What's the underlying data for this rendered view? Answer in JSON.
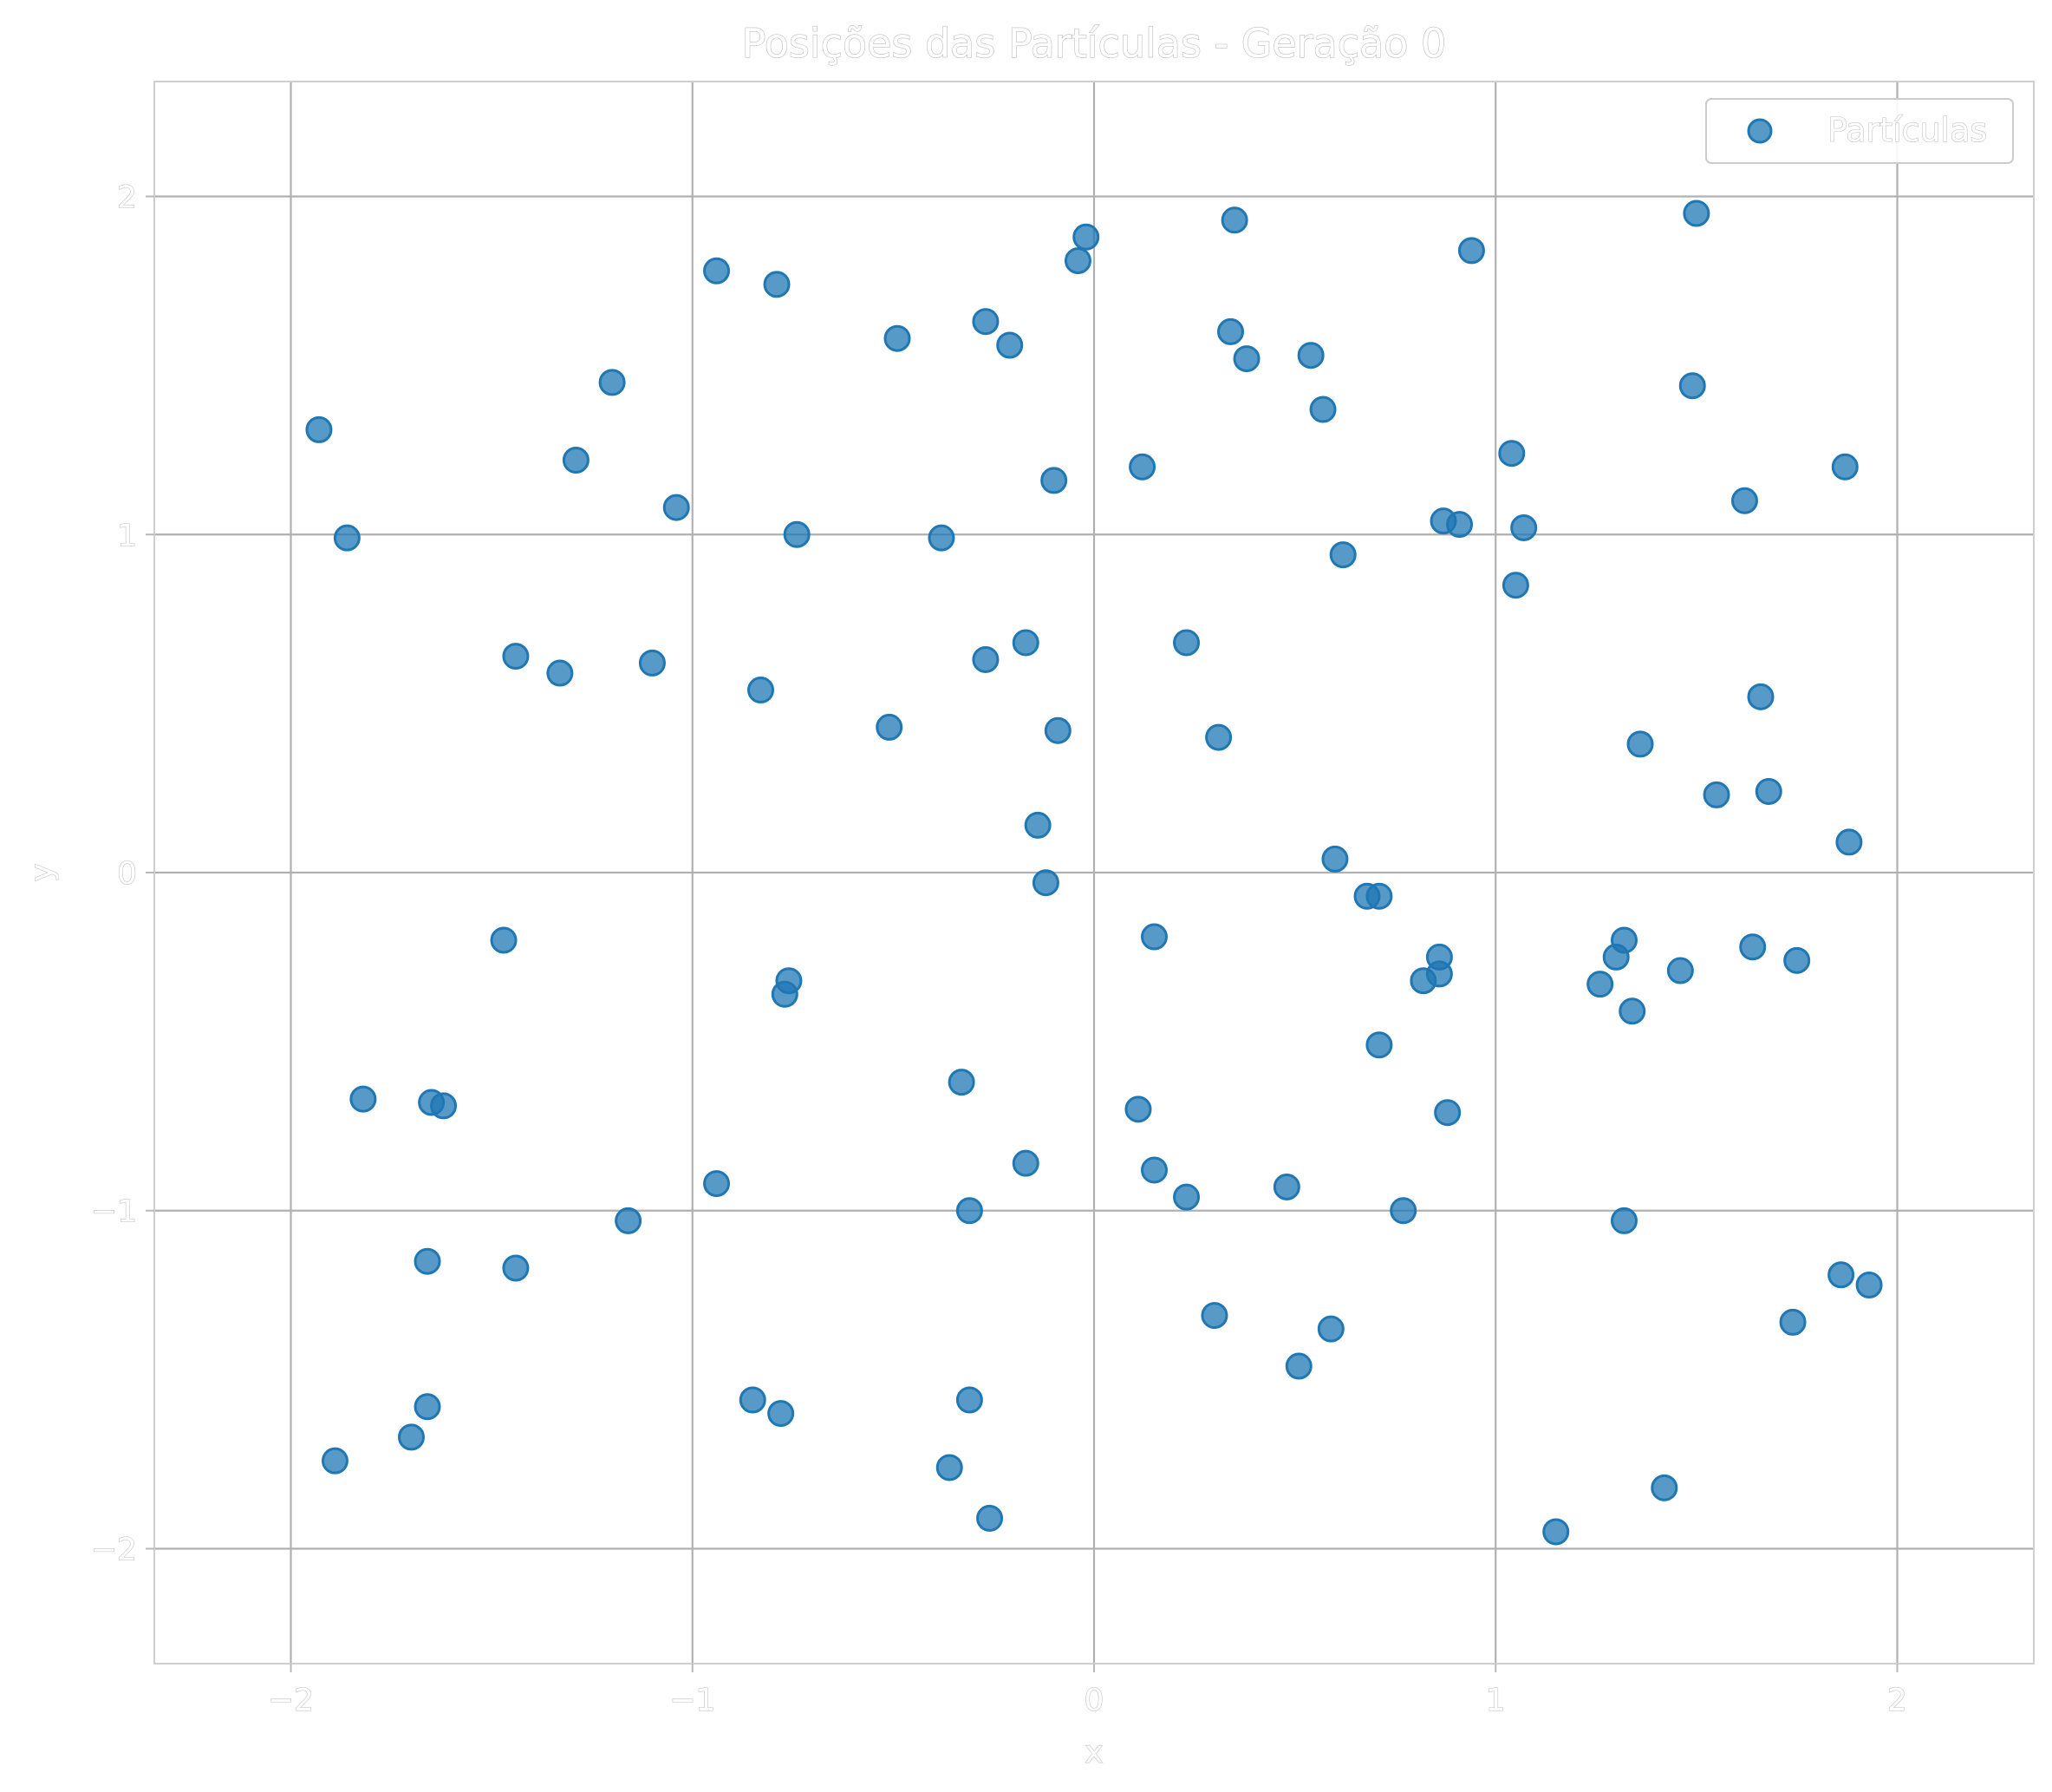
{
  "chart_data": {
    "type": "scatter",
    "title": "Posições das Partículas - Geração 0",
    "xlabel": "x",
    "ylabel": "y",
    "xlim": [
      -2.34,
      2.34
    ],
    "ylim": [
      -2.34,
      2.34
    ],
    "xticks": [
      {
        "value": -2,
        "label": "−2"
      },
      {
        "value": -1,
        "label": "−1"
      },
      {
        "value": 0,
        "label": "0"
      },
      {
        "value": 1,
        "label": "1"
      },
      {
        "value": 2,
        "label": "2"
      }
    ],
    "yticks": [
      {
        "value": -2,
        "label": "−2"
      },
      {
        "value": -1,
        "label": "−1"
      },
      {
        "value": 0,
        "label": "0"
      },
      {
        "value": 1,
        "label": "1"
      },
      {
        "value": 2,
        "label": "2"
      }
    ],
    "grid": true,
    "legend_position": "top-right",
    "series": [
      {
        "name": "Partículas",
        "color": "#1f77b4",
        "points": [
          [
            -1.93,
            1.31
          ],
          [
            -1.86,
            0.99
          ],
          [
            -1.82,
            -0.67
          ],
          [
            -1.65,
            -0.68
          ],
          [
            -1.62,
            -0.69
          ],
          [
            -1.89,
            -1.74
          ],
          [
            -1.7,
            -1.67
          ],
          [
            -1.66,
            -1.58
          ],
          [
            -1.66,
            -1.15
          ],
          [
            -1.44,
            -1.17
          ],
          [
            -1.47,
            -0.2
          ],
          [
            -1.44,
            0.64
          ],
          [
            -1.33,
            0.59
          ],
          [
            -1.29,
            1.22
          ],
          [
            -1.2,
            1.45
          ],
          [
            -1.1,
            0.62
          ],
          [
            -1.04,
            1.08
          ],
          [
            -1.16,
            -1.03
          ],
          [
            -0.94,
            1.78
          ],
          [
            -0.94,
            -0.92
          ],
          [
            -0.83,
            0.54
          ],
          [
            -0.79,
            1.74
          ],
          [
            -0.74,
            1.0
          ],
          [
            -0.76,
            -0.32
          ],
          [
            -0.77,
            -0.36
          ],
          [
            -0.85,
            -1.56
          ],
          [
            -0.78,
            -1.6
          ],
          [
            -0.51,
            0.43
          ],
          [
            -0.49,
            1.58
          ],
          [
            -0.38,
            0.99
          ],
          [
            -0.33,
            -0.62
          ],
          [
            -0.31,
            -1.0
          ],
          [
            -0.31,
            -1.56
          ],
          [
            -0.36,
            -1.76
          ],
          [
            -0.26,
            -1.91
          ],
          [
            -0.27,
            1.63
          ],
          [
            -0.21,
            1.56
          ],
          [
            -0.27,
            0.63
          ],
          [
            -0.17,
            0.68
          ],
          [
            -0.17,
            -0.86
          ],
          [
            -0.1,
            1.16
          ],
          [
            -0.09,
            0.42
          ],
          [
            -0.14,
            0.14
          ],
          [
            -0.12,
            -0.03
          ],
          [
            -0.04,
            1.81
          ],
          [
            -0.02,
            1.88
          ],
          [
            0.12,
            1.2
          ],
          [
            0.15,
            -0.19
          ],
          [
            0.11,
            -0.7
          ],
          [
            0.15,
            -0.88
          ],
          [
            0.23,
            0.68
          ],
          [
            0.23,
            -0.96
          ],
          [
            0.31,
            0.4
          ],
          [
            0.3,
            -1.31
          ],
          [
            0.34,
            1.6
          ],
          [
            0.35,
            1.93
          ],
          [
            0.38,
            1.52
          ],
          [
            0.48,
            -0.93
          ],
          [
            0.51,
            -1.46
          ],
          [
            0.54,
            1.53
          ],
          [
            0.57,
            1.37
          ],
          [
            0.59,
            -1.35
          ],
          [
            0.6,
            0.04
          ],
          [
            0.62,
            0.94
          ],
          [
            0.68,
            -0.07
          ],
          [
            0.71,
            -0.07
          ],
          [
            0.71,
            -0.51
          ],
          [
            0.77,
            -1.0
          ],
          [
            0.82,
            -0.32
          ],
          [
            0.86,
            -0.25
          ],
          [
            0.86,
            -0.3
          ],
          [
            0.88,
            -0.71
          ],
          [
            0.87,
            1.04
          ],
          [
            0.91,
            1.03
          ],
          [
            0.94,
            1.84
          ],
          [
            1.04,
            1.24
          ],
          [
            1.05,
            0.85
          ],
          [
            1.07,
            1.02
          ],
          [
            1.15,
            -1.95
          ],
          [
            1.26,
            -0.33
          ],
          [
            1.3,
            -0.25
          ],
          [
            1.32,
            -0.2
          ],
          [
            1.34,
            -0.41
          ],
          [
            1.32,
            -1.03
          ],
          [
            1.36,
            0.38
          ],
          [
            1.42,
            -1.82
          ],
          [
            1.46,
            -0.29
          ],
          [
            1.49,
            1.44
          ],
          [
            1.5,
            1.95
          ],
          [
            1.55,
            0.23
          ],
          [
            1.62,
            1.1
          ],
          [
            1.64,
            -0.22
          ],
          [
            1.66,
            0.52
          ],
          [
            1.68,
            0.24
          ],
          [
            1.74,
            -1.33
          ],
          [
            1.75,
            -0.26
          ],
          [
            1.86,
            -1.19
          ],
          [
            1.87,
            1.2
          ],
          [
            1.88,
            0.09
          ],
          [
            1.93,
            -1.22
          ]
        ]
      }
    ]
  }
}
